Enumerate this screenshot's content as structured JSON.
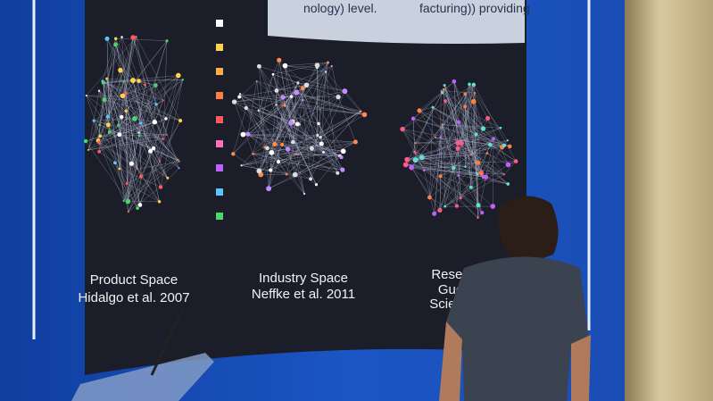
{
  "screen": {
    "banner": [
      "facturing)) providing",
      "nology) level."
    ],
    "panels": [
      {
        "title": "Product Space",
        "subtitle": "Hidalgo et al. 2007"
      },
      {
        "title": "Industry Space",
        "subtitle": "Neffke et al. 2011"
      },
      {
        "title": "Resea",
        "subtitle": "Gue",
        "extra": "Scien"
      }
    ]
  }
}
